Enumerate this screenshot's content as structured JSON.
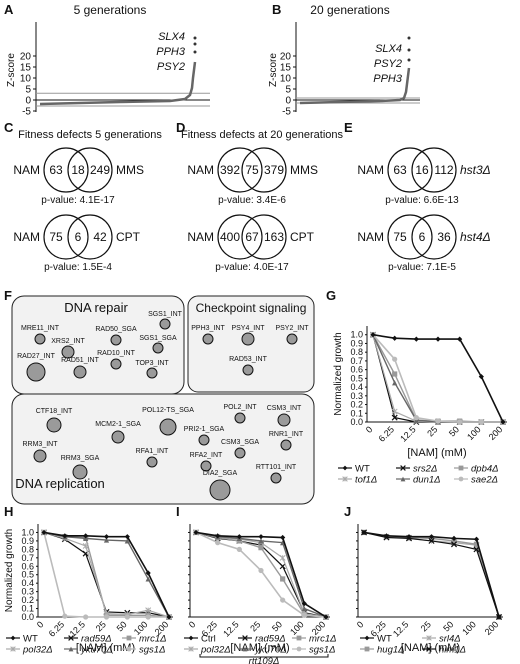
{
  "panels": {
    "A": {
      "label": "A",
      "title": "5 generations",
      "ylabel": "Z-score",
      "yticks": [
        "20",
        "15",
        "10",
        "5",
        "0",
        "-5"
      ],
      "genes": [
        "SLX4",
        "PPH3",
        "PSY2"
      ]
    },
    "B": {
      "label": "B",
      "title": "20 generations",
      "ylabel": "Z-score",
      "yticks": [
        "20",
        "15",
        "10",
        "5",
        "0",
        "-5"
      ],
      "genes": [
        "SLX4",
        "PSY2",
        "PPH3"
      ]
    },
    "C": {
      "label": "C",
      "title": "Fitness defects 5 generations",
      "venn1": {
        "left": "NAM",
        "a": "63",
        "ab": "18",
        "b": "249",
        "right": "MMS",
        "pvalue": "p-value: 4.1E-17"
      },
      "venn2": {
        "left": "NAM",
        "a": "75",
        "ab": "6",
        "b": "42",
        "right": "CPT",
        "pvalue": "p-value: 1.5E-4"
      }
    },
    "D": {
      "label": "D",
      "title": "Fitness defects at 20 generations",
      "venn1": {
        "left": "NAM",
        "a": "392",
        "ab": "75",
        "b": "379",
        "right": "MMS",
        "pvalue": "p-value: 3.4E-6"
      },
      "venn2": {
        "left": "NAM",
        "a": "400",
        "ab": "67",
        "b": "163",
        "right": "CPT",
        "pvalue": "p-value: 4.0E-17"
      }
    },
    "E": {
      "label": "E",
      "venn1": {
        "left": "NAM",
        "a": "63",
        "ab": "16",
        "b": "112",
        "right": "hst3Δ",
        "pvalue": "p-value: 6.6E-13"
      },
      "venn2": {
        "left": "NAM",
        "a": "75",
        "ab": "6",
        "b": "36",
        "right": "hst4Δ",
        "pvalue": "p-value: 7.1E-5"
      }
    },
    "F": {
      "label": "F",
      "dna_repair": {
        "title": "DNA repair",
        "nodes": [
          "MRE11_INT",
          "XRS2_INT",
          "RAD50_SGA",
          "SGS1_SGA",
          "SGS1_INT",
          "RAD27_INT",
          "RAD51_INT",
          "RAD10_INT",
          "TOP3_INT"
        ]
      },
      "checkpoint": {
        "title": "Checkpoint signaling",
        "nodes": [
          "PPH3_INT",
          "PSY4_INT",
          "PSY2_INT",
          "RAD53_INT"
        ]
      },
      "dna_replication": {
        "title": "DNA replication",
        "nodes": [
          "CTF18_INT",
          "MCM2-1_SGA",
          "POL12-TS_SGA",
          "POL2_INT",
          "CSM3_INT",
          "RRM3_INT",
          "PRI2-1_SGA",
          "RNR1_INT",
          "RRM3_SGA",
          "RFA1_INT",
          "CSM3_SGA",
          "RFA2_INT",
          "DIA2_SGA",
          "RTT101_INT"
        ]
      }
    },
    "G": {
      "label": "G"
    },
    "H": {
      "label": "H"
    },
    "I": {
      "label": "I",
      "bracket": "rtt109Δ"
    },
    "J": {
      "label": "J"
    }
  },
  "growth_axes": {
    "ylabel": "Normalized growth",
    "xlabel": "[NAM] (mM)",
    "yticks": [
      "1.0",
      "0.9",
      "0.8",
      "0.7",
      "0.6",
      "0.5",
      "0.4",
      "0.3",
      "0.2",
      "0.1",
      "0.0"
    ],
    "xticks": [
      "0",
      "6.25",
      "12.5",
      "25",
      "50",
      "100",
      "200"
    ]
  },
  "chart_data": [
    {
      "type": "line",
      "panel": "G",
      "x": [
        "0",
        "6.25",
        "12.5",
        "25",
        "50",
        "100",
        "200"
      ],
      "ylim": [
        0,
        1.1
      ],
      "series": [
        {
          "name": "WT",
          "values": [
            1.0,
            0.96,
            0.95,
            0.95,
            0.95,
            0.52,
            0.0
          ]
        },
        {
          "name": "srs2Δ",
          "values": [
            1.0,
            0.05,
            0.0,
            0.0,
            0.0,
            0.0,
            0.0
          ]
        },
        {
          "name": "dpb4Δ",
          "values": [
            1.0,
            0.55,
            0.02,
            0.01,
            0.01,
            0.0,
            0.0
          ]
        },
        {
          "name": "tof1Δ",
          "values": [
            1.0,
            0.12,
            0.01,
            0.0,
            0.0,
            0.0,
            0.0
          ]
        },
        {
          "name": "dun1Δ",
          "values": [
            1.0,
            0.45,
            0.02,
            0.0,
            0.0,
            0.0,
            0.0
          ]
        },
        {
          "name": "sae2Δ",
          "values": [
            1.0,
            0.72,
            0.05,
            0.01,
            0.0,
            0.0,
            0.0
          ]
        }
      ]
    },
    {
      "type": "line",
      "panel": "H",
      "x": [
        "0",
        "6.25",
        "12.5",
        "25",
        "50",
        "100",
        "200"
      ],
      "ylim": [
        0,
        1.1
      ],
      "series": [
        {
          "name": "WT",
          "values": [
            1.0,
            0.96,
            0.96,
            0.95,
            0.95,
            0.52,
            0.0
          ]
        },
        {
          "name": "rad59Δ",
          "values": [
            1.0,
            0.92,
            0.75,
            0.06,
            0.05,
            0.05,
            0.0
          ]
        },
        {
          "name": "mrc1Δ",
          "values": [
            1.0,
            0.95,
            0.94,
            0.02,
            0.02,
            0.02,
            0.0
          ]
        },
        {
          "name": "pol32Δ",
          "values": [
            1.0,
            0.93,
            0.84,
            0.04,
            0.03,
            0.08,
            0.0
          ]
        },
        {
          "name": "yku70Δ",
          "values": [
            1.0,
            0.95,
            0.93,
            0.91,
            0.9,
            0.45,
            0.0
          ]
        },
        {
          "name": "sgs1Δ",
          "values": [
            1.0,
            0.01,
            0.0,
            0.0,
            0.0,
            0.0,
            0.0
          ]
        }
      ]
    },
    {
      "type": "line",
      "panel": "I",
      "x": [
        "0",
        "6.25",
        "12.5",
        "25",
        "50",
        "100",
        "200"
      ],
      "ylim": [
        0,
        1.1
      ],
      "series": [
        {
          "name": "Ctrl",
          "values": [
            1.0,
            0.96,
            0.95,
            0.95,
            0.94,
            0.16,
            0.0
          ]
        },
        {
          "name": "rad59Δ",
          "values": [
            1.0,
            0.93,
            0.9,
            0.85,
            0.6,
            0.05,
            0.0
          ]
        },
        {
          "name": "mrc1Δ",
          "values": [
            1.0,
            0.94,
            0.9,
            0.82,
            0.45,
            0.03,
            0.0
          ]
        },
        {
          "name": "pol32Δ",
          "values": [
            1.0,
            0.95,
            0.92,
            0.88,
            0.7,
            0.04,
            0.0
          ]
        },
        {
          "name": "yku70Δ",
          "values": [
            1.0,
            0.95,
            0.93,
            0.9,
            0.88,
            0.1,
            0.0
          ]
        },
        {
          "name": "sgs1Δ",
          "values": [
            1.0,
            0.88,
            0.8,
            0.55,
            0.2,
            0.02,
            0.0
          ]
        }
      ]
    },
    {
      "type": "line",
      "panel": "J",
      "x": [
        "0",
        "6.25",
        "12.5",
        "25",
        "50",
        "100",
        "200"
      ],
      "ylim": [
        0,
        1.1
      ],
      "series": [
        {
          "name": "WT",
          "values": [
            1.0,
            0.96,
            0.95,
            0.95,
            0.93,
            0.92,
            0.0
          ]
        },
        {
          "name": "srl4Δ",
          "values": [
            1.0,
            0.95,
            0.93,
            0.9,
            0.88,
            0.85,
            0.0
          ]
        },
        {
          "name": "hug1Δ",
          "values": [
            1.0,
            0.95,
            0.94,
            0.93,
            0.9,
            0.86,
            0.0
          ]
        },
        {
          "name": "him1Δ",
          "values": [
            1.0,
            0.94,
            0.93,
            0.9,
            0.86,
            0.8,
            0.0
          ]
        }
      ]
    }
  ]
}
